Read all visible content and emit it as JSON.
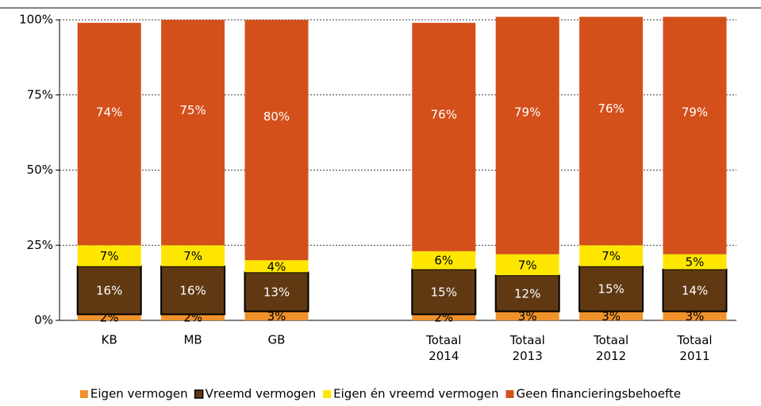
{
  "chart_data": {
    "type": "stacked_bar",
    "categories": [
      "KB",
      "MB",
      "GB",
      null,
      "Totaal 2014",
      "Totaal 2013",
      "Totaal 2012",
      "Totaal 2011"
    ],
    "series": [
      {
        "name": "Eigen vermogen",
        "color": "#f0922b",
        "values": [
          2,
          2,
          3,
          null,
          2,
          3,
          3,
          3
        ],
        "value_labels": [
          "2%",
          "2%",
          "3%",
          null,
          "2%",
          "3%",
          "3%",
          "3%"
        ]
      },
      {
        "name": "Vreemd vermogen",
        "color": "#603913",
        "values": [
          16,
          16,
          13,
          null,
          15,
          12,
          15,
          14
        ],
        "value_labels": [
          "16%",
          "16%",
          "13%",
          null,
          "15%",
          "12%",
          "15%",
          "14%"
        ]
      },
      {
        "name": "Eigen én vreemd vermogen",
        "color": "#ffe600",
        "values": [
          7,
          7,
          4,
          null,
          6,
          7,
          7,
          5
        ],
        "value_labels": [
          "7%",
          "7%",
          "4%",
          null,
          "6%",
          "7%",
          "7%",
          "5%"
        ]
      },
      {
        "name": "Geen financieringsbehoefte",
        "color": "#d4501b",
        "values": [
          74,
          75,
          80,
          null,
          76,
          79,
          76,
          79
        ],
        "value_labels": [
          "74%",
          "75%",
          "80%",
          null,
          "76%",
          "79%",
          "76%",
          "79%"
        ]
      }
    ],
    "ylim": [
      0,
      100
    ],
    "yticks": [
      {
        "value": 0,
        "label": "0%"
      },
      {
        "value": 25,
        "label": "25%"
      },
      {
        "value": 50,
        "label": "50%"
      },
      {
        "value": 75,
        "label": "75%"
      },
      {
        "value": 100,
        "label": "100%"
      }
    ],
    "grid": true,
    "legend": "bottom"
  }
}
